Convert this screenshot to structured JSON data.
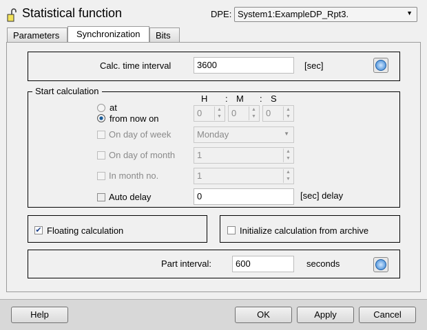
{
  "header": {
    "title": "Statistical function",
    "dpe_label": "DPE:",
    "dpe_value": "System1:ExampleDP_Rpt3."
  },
  "tabs": [
    {
      "label": "Parameters"
    },
    {
      "label": "Synchronization"
    },
    {
      "label": "Bits"
    }
  ],
  "interval": {
    "label": "Calc. time interval",
    "value": "3600",
    "unit": "[sec]"
  },
  "start": {
    "group_label": "Start calculation",
    "h": "H",
    "m": "M",
    "s": "S",
    "sep": ":",
    "at_label": "at",
    "from_now_label": "from now on",
    "hour": "0",
    "minute": "0",
    "second": "0",
    "day_of_week_label": "On day of week",
    "day_of_week": "Monday",
    "day_of_month_label": "On day of month",
    "day_of_month": "1",
    "month_label": "In month no.",
    "month": "1",
    "auto_delay_label": "Auto delay",
    "auto_delay": "0",
    "auto_delay_unit": "[sec] delay"
  },
  "floating": {
    "label": "Floating calculation",
    "checked": true
  },
  "init_archive": {
    "label": "Initialize calculation from archive",
    "checked": false
  },
  "part": {
    "label": "Part interval:",
    "value": "600",
    "unit": "seconds"
  },
  "buttons": {
    "help": "Help",
    "ok": "OK",
    "apply": "Apply",
    "cancel": "Cancel"
  }
}
